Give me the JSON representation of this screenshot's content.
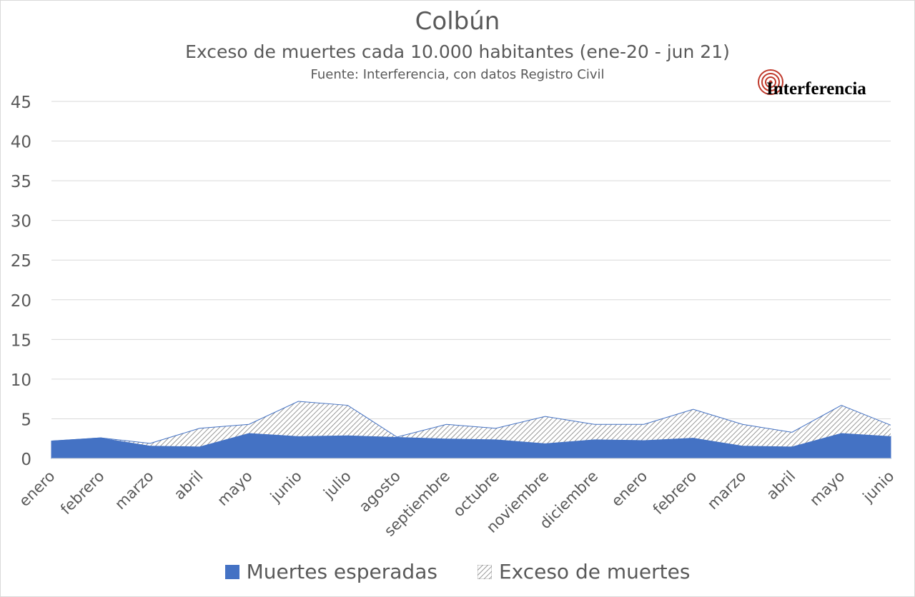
{
  "title": "Colbún",
  "subtitle": "Exceso de muertes cada 10.000 habitantes (ene-20  - jun 21)",
  "source": "Fuente: Interferencia, con datos Registro Civil",
  "logo": {
    "text": "Interferencia",
    "icon": "concentric-circles-icon",
    "color": "#c0392b"
  },
  "colors": {
    "esperadas": "#4472c4",
    "exceso_hatch": "#7f7f7f",
    "grid": "#d9d9d9",
    "text": "#595959"
  },
  "chart_data": {
    "type": "area",
    "title": "Colbún",
    "subtitle": "Exceso de muertes cada 10.000 habitantes (ene-20  - jun 21)",
    "categories": [
      "enero",
      "febrero",
      "marzo",
      "abril",
      "mayo",
      "junio",
      "julio",
      "agosto",
      "septiembre",
      "octubre",
      "noviembre",
      "diciembre",
      "enero",
      "febrero",
      "marzo",
      "abril",
      "mayo",
      "junio"
    ],
    "stacked": true,
    "series": [
      {
        "name": "Muertes esperadas",
        "values": [
          2.2,
          2.6,
          1.6,
          1.5,
          3.2,
          2.8,
          2.9,
          2.7,
          2.5,
          2.4,
          1.9,
          2.4,
          2.3,
          2.6,
          1.6,
          1.5,
          3.2,
          2.8
        ]
      },
      {
        "name": "Exceso de muertes",
        "values": [
          0,
          0,
          0.3,
          2.3,
          1.1,
          4.4,
          3.8,
          0,
          1.8,
          1.4,
          3.4,
          1.9,
          2.0,
          3.6,
          2.7,
          1.8,
          3.5,
          1.4
        ]
      }
    ],
    "ylim": [
      0,
      45
    ],
    "yticks": [
      0,
      5,
      10,
      15,
      20,
      25,
      30,
      35,
      40,
      45
    ],
    "grid": true,
    "legend_position": "bottom"
  }
}
